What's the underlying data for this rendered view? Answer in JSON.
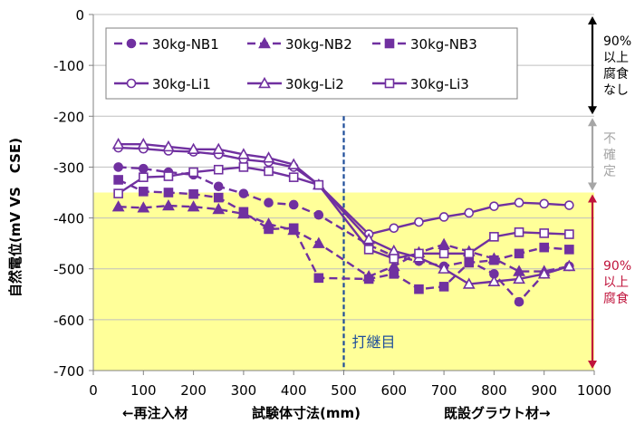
{
  "chart_data": {
    "type": "line",
    "ylabel": "自然電位(mV VS　CSE)",
    "xlabel": "試験体寸法(mm)",
    "xlabel_left": "←再注入材",
    "xlabel_right": "既設グラウト材→",
    "xlim": [
      0,
      1000
    ],
    "ylim": [
      -700,
      0
    ],
    "x_ticks": [
      "0",
      "100",
      "200",
      "300",
      "400",
      "500",
      "600",
      "700",
      "800",
      "900",
      "1000"
    ],
    "y_ticks": [
      "0",
      "-100",
      "-200",
      "-300",
      "-400",
      "-500",
      "-600",
      "-700"
    ],
    "grid": "horizontal",
    "legend_position": "top-left inside",
    "highlight_band": {
      "from": -700,
      "to": -350,
      "color": "#ffff99"
    },
    "joint_line": {
      "x": 500,
      "label": "打継目",
      "color": "#1f4e9a"
    },
    "zones": [
      {
        "label_lines": [
          "90%",
          "以上",
          "腐食",
          "なし"
        ],
        "from": 0,
        "to": -200,
        "color": "#000000"
      },
      {
        "label_lines": [
          "不",
          "確",
          "定"
        ],
        "from": -200,
        "to": -350,
        "color": "#a6a6a6"
      },
      {
        "label_lines": [
          "90%",
          "以上",
          "腐食"
        ],
        "from": -350,
        "to": -700,
        "color": "#c0143c"
      }
    ],
    "series_color": "#7030a0",
    "series": [
      {
        "name": "30kg-NB1",
        "marker": "circle",
        "filled": true,
        "dashed": true,
        "x": [
          50,
          100,
          150,
          200,
          250,
          300,
          350,
          400,
          450,
          550,
          600,
          650,
          700,
          750,
          800,
          850,
          900,
          950
        ],
        "y": [
          -300,
          -303,
          -310,
          -315,
          -338,
          -352,
          -370,
          -374,
          -394,
          -453,
          -475,
          -485,
          -495,
          -485,
          -510,
          -565,
          -510,
          -495
        ]
      },
      {
        "name": "30kg-NB2",
        "marker": "triangle",
        "filled": true,
        "dashed": true,
        "x": [
          50,
          100,
          150,
          200,
          250,
          300,
          350,
          400,
          450,
          550,
          600,
          650,
          700,
          750,
          800,
          850,
          900,
          950
        ],
        "y": [
          -378,
          -380,
          -376,
          -378,
          -383,
          -392,
          -412,
          -424,
          -450,
          -515,
          -495,
          -468,
          -452,
          -466,
          -480,
          -505,
          -505,
          -495
        ]
      },
      {
        "name": "30kg-NB3",
        "marker": "square",
        "filled": true,
        "dashed": true,
        "x": [
          50,
          100,
          150,
          200,
          250,
          300,
          350,
          400,
          450,
          550,
          600,
          650,
          700,
          750,
          800,
          850,
          900,
          950
        ],
        "y": [
          -325,
          -348,
          -350,
          -353,
          -360,
          -388,
          -422,
          -420,
          -518,
          -520,
          -510,
          -540,
          -535,
          -488,
          -483,
          -470,
          -458,
          -462
        ]
      },
      {
        "name": "30kg-Li1",
        "marker": "circle",
        "filled": false,
        "dashed": false,
        "x": [
          50,
          100,
          150,
          200,
          250,
          300,
          350,
          400,
          450,
          550,
          600,
          650,
          700,
          750,
          800,
          850,
          900,
          950
        ],
        "y": [
          -262,
          -264,
          -268,
          -270,
          -275,
          -285,
          -290,
          -300,
          -335,
          -432,
          -420,
          -408,
          -398,
          -390,
          -377,
          -370,
          -372,
          -375
        ]
      },
      {
        "name": "30kg-Li2",
        "marker": "triangle",
        "filled": false,
        "dashed": false,
        "x": [
          50,
          100,
          150,
          200,
          250,
          300,
          350,
          400,
          450,
          550,
          600,
          650,
          700,
          750,
          800,
          850,
          900,
          950
        ],
        "y": [
          -255,
          -255,
          -260,
          -265,
          -265,
          -275,
          -282,
          -295,
          -335,
          -442,
          -465,
          -478,
          -500,
          -530,
          -525,
          -520,
          -510,
          -495
        ]
      },
      {
        "name": "30kg-Li3",
        "marker": "square",
        "filled": false,
        "dashed": false,
        "x": [
          50,
          100,
          150,
          200,
          250,
          300,
          350,
          400,
          450,
          550,
          600,
          650,
          700,
          750,
          800,
          850,
          900,
          950
        ],
        "y": [
          -352,
          -320,
          -318,
          -310,
          -305,
          -300,
          -308,
          -320,
          -335,
          -462,
          -480,
          -470,
          -470,
          -470,
          -437,
          -428,
          -430,
          -432
        ]
      }
    ]
  }
}
